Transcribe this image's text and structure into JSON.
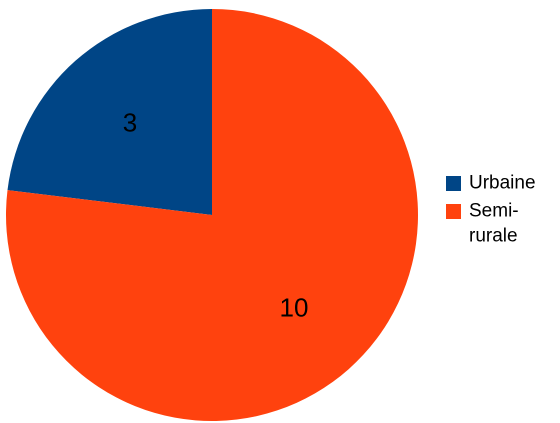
{
  "chart_data": {
    "type": "pie",
    "categories": [
      "Urbaine",
      "Semi-rurale"
    ],
    "values": [
      3,
      10
    ],
    "colors": [
      "#004586",
      "#ff420e"
    ],
    "data_labels": [
      "3",
      "10"
    ],
    "legend": {
      "placement": "right",
      "entries": [
        {
          "lines": [
            "Urbaine"
          ],
          "color": "#004586"
        },
        {
          "lines": [
            "Semi-",
            "rurale"
          ],
          "color": "#ff420e"
        }
      ]
    },
    "title": "",
    "start_angle": "12 o'clock",
    "direction": "counter-clockwise"
  }
}
